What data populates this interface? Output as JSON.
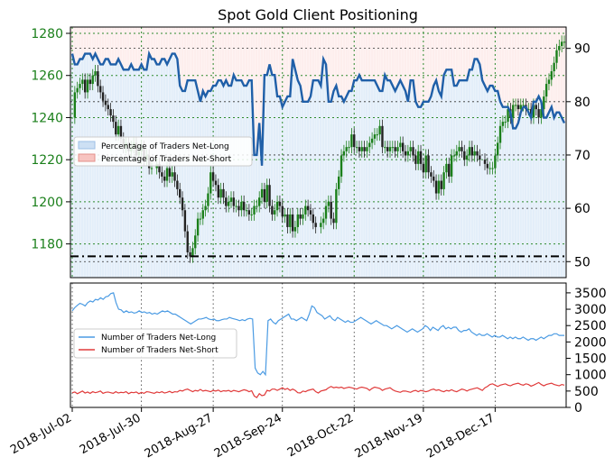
{
  "chart_data": [
    {
      "type": "candlestick+line",
      "title": "Spot Gold Client Positioning",
      "x_ticks": [
        "2018-Jul-02",
        "2018-Jul-30",
        "2018-Aug-27",
        "2018-Sep-24",
        "2018-Oct-22",
        "2018-Nov-19",
        "2018-Dec-17"
      ],
      "y_left": {
        "ticks": [
          1180,
          1200,
          1220,
          1240,
          1260,
          1280
        ],
        "range": [
          1164,
          1283
        ],
        "color": "#1a7f1a"
      },
      "y_right": {
        "ticks": [
          50,
          60,
          70,
          80,
          90
        ],
        "range": [
          47,
          94
        ]
      },
      "reference_line": 51,
      "legend": {
        "placement": "center-left",
        "entries": [
          "Percentage of Traders Net-Long",
          "Percentage of Traders Net-Short"
        ]
      },
      "grid": true,
      "net_long_pct_series": {
        "name": "Percentage of Traders Net-Long",
        "color": "#1f5fa8",
        "values": [
          89,
          87,
          87,
          88,
          88,
          89,
          89,
          89,
          88,
          89,
          88,
          87,
          87,
          88,
          88,
          87,
          87,
          87,
          88,
          87,
          86,
          86,
          86,
          87,
          86,
          86,
          86,
          87,
          86,
          86,
          89,
          88,
          88,
          87,
          87,
          88,
          88,
          87,
          88,
          89,
          89,
          88,
          83,
          82,
          82,
          84,
          84,
          84,
          84,
          82,
          80,
          82,
          81,
          82,
          82,
          83,
          83,
          84,
          84,
          83,
          84,
          83,
          83,
          85,
          84,
          84,
          84,
          83,
          83,
          84,
          84,
          70,
          70,
          76,
          68,
          85,
          85,
          87,
          85,
          85,
          81,
          81,
          79,
          80,
          81,
          81,
          88,
          86,
          84,
          83,
          80,
          80,
          80,
          81,
          84,
          84,
          84,
          83,
          88,
          87,
          80,
          80,
          82,
          83,
          81,
          81,
          80,
          81,
          82,
          82,
          84,
          84,
          85,
          84,
          84,
          84,
          84,
          84,
          84,
          83,
          82,
          82,
          85,
          84,
          84,
          83,
          82,
          83,
          84,
          83,
          82,
          80,
          84,
          84,
          80,
          79,
          79,
          80,
          80,
          80,
          81,
          83,
          84,
          82,
          81,
          85,
          86,
          86,
          86,
          83,
          83,
          84,
          84,
          84,
          84,
          86,
          86,
          88,
          88,
          87,
          84,
          83,
          82,
          83,
          83,
          82,
          82,
          80,
          79,
          79,
          79,
          78,
          75,
          75,
          76,
          78,
          79,
          79,
          78,
          77,
          80,
          80,
          81,
          80,
          77,
          77,
          78,
          79,
          77,
          78,
          78,
          77,
          76
        ]
      },
      "price_ohlc_close": [
        1240,
        1252,
        1254,
        1256,
        1258,
        1252,
        1258,
        1256,
        1260,
        1262,
        1255,
        1252,
        1248,
        1246,
        1244,
        1241,
        1238,
        1232,
        1236,
        1230,
        1226,
        1228,
        1224,
        1226,
        1228,
        1222,
        1224,
        1226,
        1220,
        1222,
        1216,
        1216,
        1218,
        1214,
        1212,
        1210,
        1216,
        1212,
        1214,
        1210,
        1206,
        1202,
        1196,
        1186,
        1176,
        1174,
        1178,
        1184,
        1192,
        1192,
        1196,
        1198,
        1204,
        1214,
        1210,
        1208,
        1202,
        1206,
        1202,
        1198,
        1200,
        1202,
        1198,
        1198,
        1196,
        1200,
        1196,
        1196,
        1194,
        1194,
        1198,
        1198,
        1202,
        1206,
        1200,
        1208,
        1198,
        1194,
        1196,
        1200,
        1198,
        1193,
        1194,
        1188,
        1194,
        1186,
        1188,
        1194,
        1192,
        1194,
        1198,
        1196,
        1194,
        1190,
        1188,
        1190,
        1192,
        1198,
        1200,
        1192,
        1190,
        1206,
        1212,
        1222,
        1224,
        1226,
        1226,
        1232,
        1226,
        1226,
        1224,
        1226,
        1224,
        1226,
        1228,
        1230,
        1232,
        1232,
        1236,
        1226,
        1226,
        1224,
        1226,
        1226,
        1224,
        1226,
        1228,
        1224,
        1222,
        1224,
        1226,
        1222,
        1218,
        1224,
        1218,
        1214,
        1222,
        1214,
        1212,
        1210,
        1204,
        1210,
        1206,
        1214,
        1218,
        1212,
        1222,
        1222,
        1224,
        1226,
        1224,
        1220,
        1222,
        1226,
        1222,
        1224,
        1222,
        1220,
        1218,
        1216,
        1216,
        1216,
        1222,
        1228,
        1236,
        1238,
        1238,
        1244,
        1240,
        1246,
        1246,
        1244,
        1246,
        1246,
        1244,
        1244,
        1240,
        1246,
        1244,
        1240,
        1244,
        1250,
        1256,
        1258,
        1262,
        1266,
        1272,
        1274,
        1276,
        1276
      ]
    },
    {
      "type": "line",
      "y_ticks": [
        0,
        500,
        1000,
        1500,
        2000,
        2500,
        3000,
        3500
      ],
      "y_range": [
        0,
        3800
      ],
      "legend": {
        "placement": "center-left"
      },
      "grid": true,
      "series": [
        {
          "name": "Number of Traders Net-Long",
          "color": "#4b9be3",
          "values": [
            2950,
            3050,
            3120,
            3180,
            3150,
            3100,
            3200,
            3250,
            3220,
            3300,
            3280,
            3350,
            3300,
            3380,
            3400,
            3480,
            3500,
            3200,
            3000,
            2980,
            2900,
            2950,
            2900,
            2920,
            2880,
            2900,
            2950,
            2900,
            2920,
            2880,
            2900,
            2850,
            2880,
            2850,
            2900,
            2950,
            2920,
            2950,
            2900,
            2850,
            2850,
            2800,
            2750,
            2700,
            2650,
            2600,
            2550,
            2600,
            2650,
            2700,
            2700,
            2720,
            2750,
            2700,
            2680,
            2700,
            2650,
            2650,
            2680,
            2700,
            2700,
            2750,
            2720,
            2700,
            2680,
            2650,
            2680,
            2650,
            2700,
            2720,
            2700,
            1200,
            1050,
            1000,
            1100,
            1000,
            2650,
            2700,
            2600,
            2550,
            2650,
            2700,
            2750,
            2800,
            2850,
            2700,
            2700,
            2650,
            2700,
            2750,
            2700,
            2650,
            2850,
            3100,
            3050,
            2900,
            2850,
            2800,
            2700,
            2750,
            2800,
            2700,
            2650,
            2750,
            2700,
            2650,
            2600,
            2650,
            2600,
            2600,
            2650,
            2700,
            2750,
            2700,
            2650,
            2600,
            2550,
            2600,
            2650,
            2600,
            2550,
            2500,
            2500,
            2450,
            2400,
            2450,
            2500,
            2450,
            2400,
            2350,
            2300,
            2350,
            2400,
            2350,
            2300,
            2350,
            2400,
            2500,
            2450,
            2350,
            2450,
            2400,
            2350,
            2450,
            2500,
            2400,
            2450,
            2400,
            2450,
            2450,
            2350,
            2300,
            2350,
            2350,
            2400,
            2300,
            2250,
            2200,
            2250,
            2200,
            2200,
            2250,
            2200,
            2150,
            2200,
            2150,
            2150,
            2200,
            2150,
            2100,
            2150,
            2100,
            2150,
            2100,
            2100,
            2150,
            2100,
            2050,
            2100,
            2100,
            2050,
            2100,
            2150,
            2100,
            2150,
            2200,
            2200,
            2250,
            2250,
            2200,
            2200,
            2200
          ]
        },
        {
          "name": "Number of Traders Net-Short",
          "color": "#e03a3a",
          "values": [
            450,
            470,
            420,
            460,
            500,
            440,
            470,
            430,
            480,
            450,
            470,
            500,
            430,
            460,
            470,
            450,
            430,
            480,
            440,
            460,
            450,
            480,
            420,
            460,
            450,
            470,
            420,
            460,
            430,
            480,
            470,
            450,
            430,
            470,
            450,
            480,
            440,
            460,
            490,
            450,
            480,
            470,
            520,
            500,
            540,
            560,
            520,
            480,
            520,
            500,
            550,
            500,
            520,
            500,
            480,
            520,
            500,
            530,
            480,
            510,
            500,
            520,
            480,
            520,
            500,
            480,
            510,
            540,
            520,
            480,
            510,
            350,
            300,
            420,
            360,
            380,
            520,
            500,
            560,
            560,
            520,
            560,
            600,
            550,
            580,
            520,
            560,
            520,
            450,
            440,
            500,
            480,
            520,
            540,
            560,
            480,
            440,
            500,
            520,
            540,
            600,
            640,
            600,
            620,
            600,
            620,
            580,
            600,
            620,
            600,
            580,
            560,
            600,
            620,
            600,
            580,
            520,
            580,
            620,
            600,
            580,
            520,
            560,
            580,
            600,
            540,
            500,
            480,
            460,
            500,
            500,
            480,
            460,
            500,
            520,
            480,
            520,
            500,
            480,
            500,
            540,
            560,
            520,
            540,
            500,
            480,
            520,
            500,
            540,
            500,
            480,
            520,
            560,
            540,
            500,
            540,
            560,
            580,
            600,
            560,
            520,
            600,
            640,
            700,
            720,
            680,
            640,
            680,
            700,
            720,
            680,
            660,
            700,
            720,
            740,
            700,
            680,
            720,
            700,
            650,
            680,
            720,
            760,
            700,
            660,
            700,
            720,
            740,
            700,
            680,
            660,
            700,
            680
          ]
        }
      ]
    }
  ]
}
